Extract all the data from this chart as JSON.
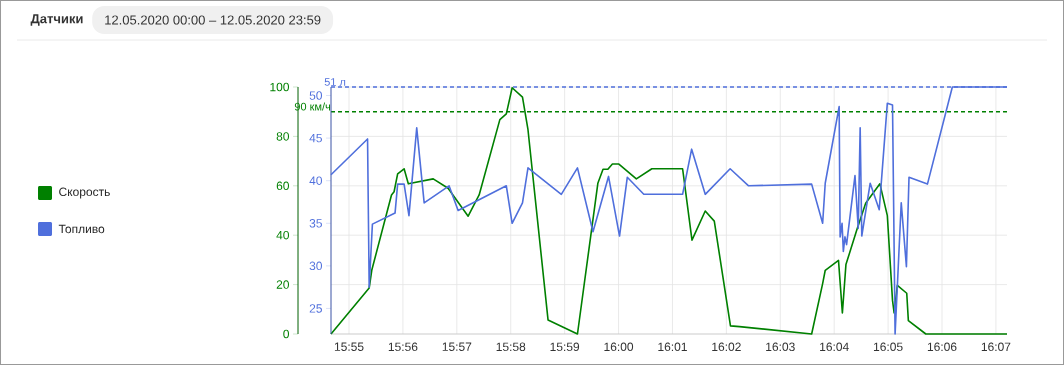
{
  "chart_data": {
    "type": "line",
    "title": "Датчики",
    "subtitle": "12.05.2020 00:00 – 12.05.2020 23:59",
    "xlim": [
      15.9111,
      16.1201
    ],
    "ylim": [
      0,
      100
    ],
    "y2lim": [
      22,
      51
    ],
    "xticks": [
      {
        "value": 15.91667,
        "label": "15:55"
      },
      {
        "value": 15.93333,
        "label": "15:56"
      },
      {
        "value": 15.95,
        "label": "15:57"
      },
      {
        "value": 15.96667,
        "label": "15:58"
      },
      {
        "value": 15.98333,
        "label": "15:59"
      },
      {
        "value": 16.0,
        "label": "16:00"
      },
      {
        "value": 16.01667,
        "label": "16:01"
      },
      {
        "value": 16.03333,
        "label": "16:02"
      },
      {
        "value": 16.05,
        "label": "16:03"
      },
      {
        "value": 16.06667,
        "label": "16:04"
      },
      {
        "value": 16.08333,
        "label": "16:05"
      },
      {
        "value": 16.1,
        "label": "16:06"
      },
      {
        "value": 16.11667,
        "label": "16:07"
      }
    ],
    "yticks": [
      0,
      20,
      40,
      60,
      80,
      100
    ],
    "y2ticks": [
      25,
      30,
      35,
      40,
      45,
      50
    ],
    "grid": true,
    "legend": "left",
    "ref_lines": [
      {
        "axis": "y2",
        "value": 51,
        "label": "51 л",
        "color": "#4f6fdc",
        "line_style": "dashed"
      },
      {
        "axis": "y",
        "value": 90,
        "label": "90 км/ч",
        "color": "#008000",
        "line_style": "dashed"
      }
    ],
    "series": [
      {
        "name": "Скорость",
        "color": "#008000",
        "x": [
          15.9111,
          15.9229,
          15.9237,
          15.9298,
          15.9306,
          15.9317,
          15.9337,
          15.935,
          15.9427,
          15.9473,
          15.9535,
          15.9569,
          15.9633,
          15.9653,
          15.9671,
          15.9703,
          15.972,
          15.9782,
          15.9873,
          15.9936,
          15.9952,
          15.9967,
          15.9981,
          16.0001,
          16.0055,
          16.0103,
          16.0198,
          16.0204,
          16.0227,
          16.0268,
          16.0296,
          16.0346,
          16.0374,
          16.0597,
          16.0631,
          16.0639,
          16.068,
          16.0692,
          16.0703,
          16.0737,
          16.0764,
          16.0808,
          16.0831,
          16.0847,
          16.0852,
          16.0862,
          16.0891,
          16.0896,
          16.095,
          16.1201
        ],
        "values": [
          0,
          18.6,
          25.8,
          56.3,
          57.6,
          64.8,
          66.9,
          60.8,
          62.8,
          59,
          47.7,
          56.3,
          86.8,
          89.1,
          99.7,
          95.9,
          82.7,
          5.7,
          0,
          61,
          66.7,
          66.7,
          68.8,
          68.8,
          62.8,
          66.9,
          66.9,
          61,
          38,
          49.8,
          45.7,
          3.3,
          3,
          0,
          20.4,
          25.8,
          29.8,
          8.5,
          28.1,
          42.3,
          52.9,
          60.8,
          47.9,
          13.6,
          8.5,
          19.7,
          16.5,
          5.4,
          0,
          0
        ]
      },
      {
        "name": "Топливо",
        "color": "#4f6fdc",
        "axis": "y2",
        "x": [
          15.9111,
          15.9224,
          15.9229,
          15.9239,
          15.9309,
          15.9317,
          15.9337,
          15.9352,
          15.9376,
          15.9399,
          15.9476,
          15.9504,
          15.9653,
          15.9671,
          15.9703,
          15.972,
          15.9823,
          15.9873,
          15.9921,
          15.9969,
          16.0003,
          16.0027,
          16.0078,
          16.0198,
          16.0226,
          16.0268,
          16.0345,
          16.0402,
          16.0597,
          16.0631,
          16.0639,
          16.0682,
          16.0685,
          16.0691,
          16.0695,
          16.07,
          16.0705,
          16.0731,
          16.0741,
          16.0747,
          16.0752,
          16.0778,
          16.0806,
          16.0831,
          16.0847,
          16.0855,
          16.0874,
          16.089,
          16.0898,
          16.0955,
          16.1032,
          16.1201
        ],
        "values": [
          40.7,
          44.9,
          27.5,
          34.9,
          36.2,
          39.6,
          39.6,
          35.9,
          46.2,
          37.4,
          39.4,
          36.5,
          39.4,
          35.0,
          37.4,
          41.5,
          38.4,
          41.5,
          34.0,
          40.5,
          33.5,
          40.4,
          38.4,
          38.4,
          43.7,
          38.4,
          41.4,
          39.4,
          39.6,
          35.0,
          39.7,
          48.7,
          33.4,
          35.0,
          31.7,
          33.4,
          32.5,
          40.6,
          34.4,
          46.2,
          33.5,
          39.7,
          36.6,
          49.1,
          48.9,
          22,
          37.4,
          29.9,
          40.4,
          39.6,
          51,
          51
        ]
      }
    ]
  }
}
